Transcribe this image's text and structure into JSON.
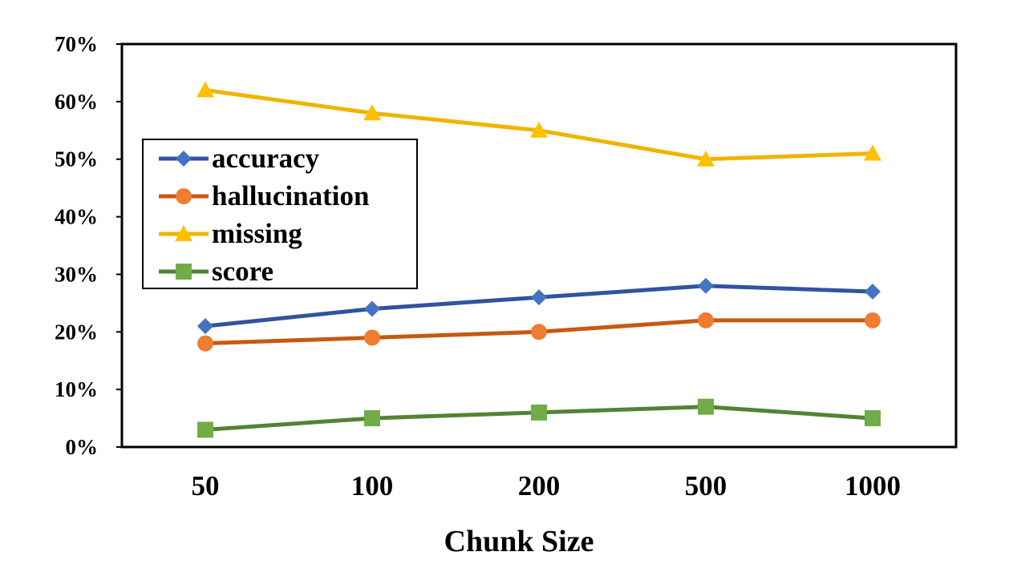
{
  "chart_data": {
    "type": "line",
    "title": "",
    "xlabel": "Chunk Size",
    "ylabel": "",
    "categories": [
      "50",
      "100",
      "200",
      "500",
      "1000"
    ],
    "yticks": [
      "0%",
      "10%",
      "20%",
      "30%",
      "40%",
      "50%",
      "60%",
      "70%"
    ],
    "ylim": [
      0,
      70
    ],
    "y_unit": "%",
    "grid": false,
    "legend_position": "left-center",
    "series": [
      {
        "name": "accuracy",
        "values": [
          21,
          24,
          26,
          28,
          27
        ],
        "color": "#2F54A0",
        "marker_color": "#4472C4",
        "marker": "diamond"
      },
      {
        "name": "hallucination",
        "values": [
          18,
          19,
          20,
          22,
          22
        ],
        "color": "#C55A11",
        "marker_color": "#ED7D31",
        "marker": "circle"
      },
      {
        "name": "missing",
        "values": [
          62,
          58,
          55,
          50,
          51
        ],
        "color": "#F0B400",
        "marker_color": "#FFC000",
        "marker": "triangle"
      },
      {
        "name": "score",
        "values": [
          3,
          5,
          6,
          7,
          5
        ],
        "color": "#548235",
        "marker_color": "#70AD47",
        "marker": "square"
      }
    ]
  }
}
